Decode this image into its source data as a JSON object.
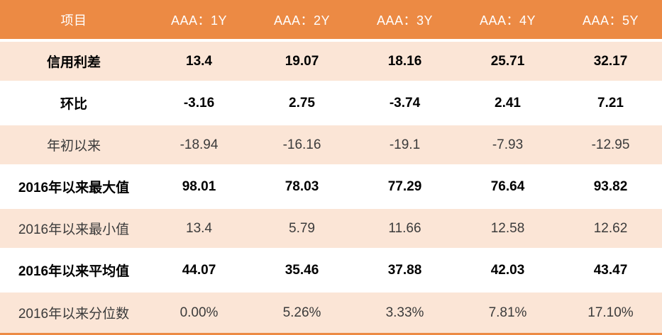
{
  "chart_data": {
    "type": "table",
    "columns": [
      "项目",
      "AAA：1Y",
      "AAA：2Y",
      "AAA：3Y",
      "AAA：4Y",
      "AAA：5Y"
    ],
    "rows": [
      {
        "label": "信用利差",
        "values": [
          "13.4",
          "19.07",
          "18.16",
          "25.71",
          "32.17"
        ]
      },
      {
        "label": "环比",
        "values": [
          "-3.16",
          "2.75",
          "-3.74",
          "2.41",
          "7.21"
        ]
      },
      {
        "label": "年初以来",
        "values": [
          "-18.94",
          "-16.16",
          "-19.1",
          "-7.93",
          "-12.95"
        ]
      },
      {
        "label": "2016年以来最大值",
        "values": [
          "98.01",
          "78.03",
          "77.29",
          "76.64",
          "93.82"
        ]
      },
      {
        "label": "2016年以来最小值",
        "values": [
          "13.4",
          "5.79",
          "11.66",
          "12.58",
          "12.62"
        ]
      },
      {
        "label": "2016年以来平均值",
        "values": [
          "44.07",
          "35.46",
          "37.88",
          "42.03",
          "43.47"
        ]
      },
      {
        "label": "2016年以来分位数",
        "values": [
          "0.00%",
          "5.26%",
          "3.33%",
          "7.81%",
          "17.10%"
        ]
      }
    ],
    "layout_hints": {
      "header_fill": "#EC8A44",
      "shaded_row_fill": "#FBE5D6",
      "plain_row_fill": "#FFFFFF",
      "header_text_color": "#FFFFFF",
      "emphasis_text_color": "#000000",
      "regular_text_color": "#3B3B3B",
      "bottom_accent_color": "#EC8A44",
      "emphasized_rows": [
        0,
        1,
        3,
        5
      ],
      "shaded_rows": [
        0,
        2,
        4,
        6
      ]
    }
  }
}
